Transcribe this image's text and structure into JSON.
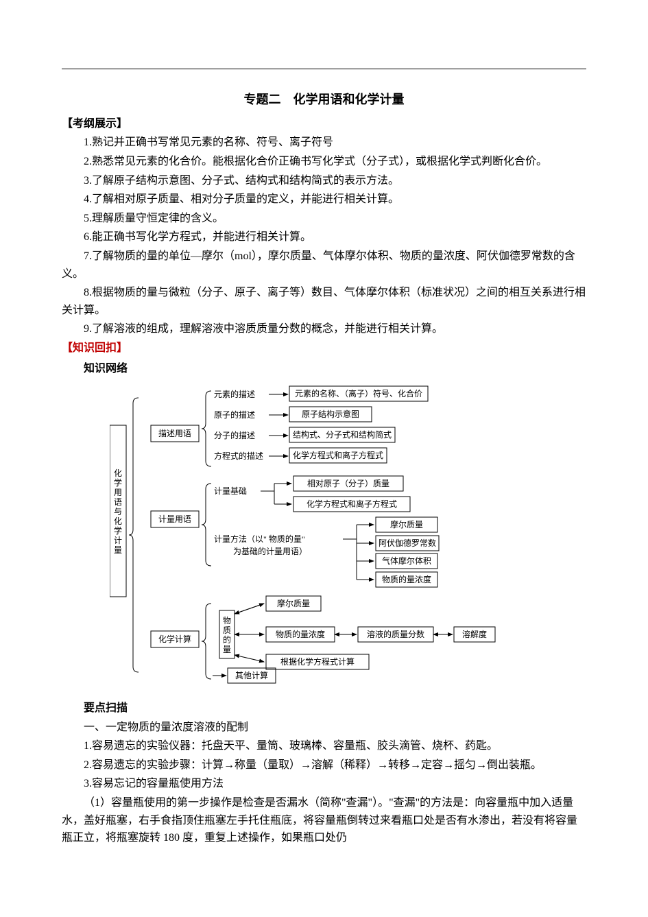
{
  "title": "专题二　化学用语和化学计量",
  "sections": {
    "kaogang_hd": "【考纲展示】",
    "kaogang": [
      "1.熟记并正确书写常见元素的名称、符号、离子符号",
      "2.熟悉常见元素的化合价。能根据化合价正确书写化学式（分子式），或根据化学式判断化合价。",
      "3.了解原子结构示意图、分子式、结构式和结构简式的表示方法。",
      "4.了解相对原子质量、相对分子质量的定义，并能进行相关计算。",
      "5.理解质量守恒定律的含义。",
      "6.能正确书写化学方程式，并能进行相关计算。",
      "7.了解物质的量的单位—摩尔（mol），摩尔质量、气体摩尔体积、物质的量浓度、阿伏伽德罗常数的含义。",
      "8.根据物质的量与微粒（分子、原子、离子等）数目、气体摩尔体积（标准状况）之间的相互关系进行相关计算。",
      "9.了解溶液的组成，理解溶液中溶质质量分数的概念，并能进行相关计算。"
    ],
    "zhishi_hd": "【知识回扣】",
    "zhishi_net_hd": "知识网络",
    "yaodian_hd": "要点扫描",
    "yaodian_sub": "一、一定物质的量浓度溶液的配制",
    "yaodian_lines": [
      "1.容易遗忘的实验仪器：托盘天平、量筒、玻璃棒、容量瓶、胶头滴管、烧杯、药匙。",
      "2.容易遗忘的实验步骤：计算→称量（量取）→溶解（稀释）→转移→定容→摇匀→倒出装瓶。",
      "3.容易忘记的容量瓶使用方法",
      "（1）容量瓶使用的第一步操作是检查是否漏水（简称\"查漏\"）。\"查漏\"的方法是：向容量瓶中加入适量水，盖好瓶塞，右手食指顶住瓶塞左手托住瓶底，将容量瓶倒转过来看瓶口处是否有水渗出，若没有将容量瓶正立，将瓶塞旋转 180 度，重复上述操作，如果瓶口处仍"
    ]
  },
  "diagram": {
    "root": "化学用语与化学计量",
    "branches": {
      "b1": {
        "label": "描述用语",
        "sub": [
          {
            "mid": "元素的描述",
            "leaf": "元素的名称、（离子）符号、化合价"
          },
          {
            "mid": "原子的描述",
            "leaf": "原子结构示意图"
          },
          {
            "mid": "分子的描述",
            "leaf": "结构式、分子式和结构简式"
          },
          {
            "mid": "方程式的描述",
            "leaf": "化学方程式和离子方程式"
          }
        ]
      },
      "b2": {
        "label": "计量用语",
        "sub1": {
          "mid": "计量基础",
          "leaves": [
            "相对原子（分子）质量",
            "化学方程式和离子方程式"
          ]
        },
        "sub2": {
          "mid_l1": "计量方法（以\" 物质的量\"",
          "mid_l2": "为基础的计量用语）",
          "leaves": [
            "摩尔质量",
            "阿伏伽德罗常数",
            "气体摩尔体积",
            "物质的量浓度"
          ]
        }
      },
      "b3": {
        "label": "化学计算",
        "wuzhi": "物质的量",
        "top_leaf": "摩尔质量",
        "mid_leaf": "物质的量浓度",
        "right_leaves": [
          "溶液的质量分数",
          "溶解度"
        ],
        "bot_leaf": "根据化学方程式计算",
        "other": "其他计算"
      }
    },
    "colors": {
      "stroke": "#000000",
      "text": "#000000",
      "bg": "#ffffff"
    },
    "font_size": 12
  }
}
